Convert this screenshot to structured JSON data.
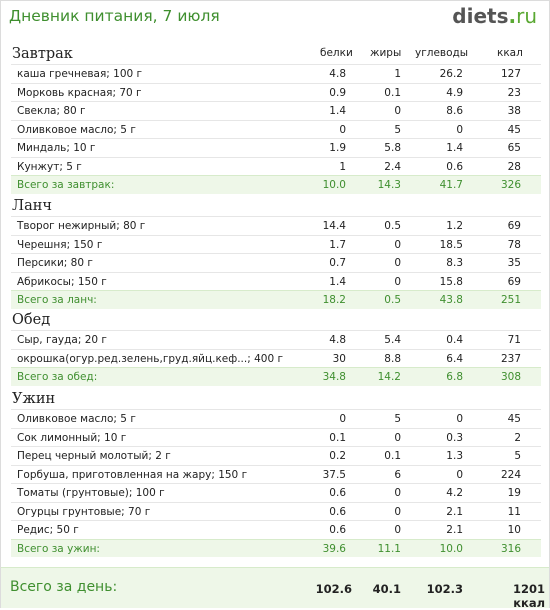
{
  "title": "Дневник питания, 7 июля",
  "logo": {
    "name": "diets",
    "dot": ".",
    "tld": "ru"
  },
  "columns": {
    "protein": "белки",
    "fat": "жиры",
    "carbs": "углеводы",
    "kcal": "ккал"
  },
  "meals": [
    {
      "name": "Завтрак",
      "items": [
        {
          "label": "каша гречневая; 100 г",
          "protein": "4.8",
          "fat": "1",
          "carbs": "26.2",
          "kcal": "127"
        },
        {
          "label": "Морковь красная; 70 г",
          "protein": "0.9",
          "fat": "0.1",
          "carbs": "4.9",
          "kcal": "23"
        },
        {
          "label": "Свекла; 80 г",
          "protein": "1.4",
          "fat": "0",
          "carbs": "8.6",
          "kcal": "38"
        },
        {
          "label": "Оливковое масло; 5 г",
          "protein": "0",
          "fat": "5",
          "carbs": "0",
          "kcal": "45"
        },
        {
          "label": "Миндаль; 10 г",
          "protein": "1.9",
          "fat": "5.8",
          "carbs": "1.4",
          "kcal": "65"
        },
        {
          "label": "Кунжут; 5 г",
          "protein": "1",
          "fat": "2.4",
          "carbs": "0.6",
          "kcal": "28"
        }
      ],
      "total": {
        "label": "Всего за завтрак:",
        "protein": "10.0",
        "fat": "14.3",
        "carbs": "41.7",
        "kcal": "326"
      }
    },
    {
      "name": "Ланч",
      "items": [
        {
          "label": "Творог нежирный; 80 г",
          "protein": "14.4",
          "fat": "0.5",
          "carbs": "1.2",
          "kcal": "69"
        },
        {
          "label": "Черешня; 150 г",
          "protein": "1.7",
          "fat": "0",
          "carbs": "18.5",
          "kcal": "78"
        },
        {
          "label": "Персики; 80 г",
          "protein": "0.7",
          "fat": "0",
          "carbs": "8.3",
          "kcal": "35"
        },
        {
          "label": "Абрикосы; 150 г",
          "protein": "1.4",
          "fat": "0",
          "carbs": "15.8",
          "kcal": "69"
        }
      ],
      "total": {
        "label": "Всего за ланч:",
        "protein": "18.2",
        "fat": "0.5",
        "carbs": "43.8",
        "kcal": "251"
      }
    },
    {
      "name": "Обед",
      "items": [
        {
          "label": "Сыр, гауда; 20 г",
          "protein": "4.8",
          "fat": "5.4",
          "carbs": "0.4",
          "kcal": "71"
        },
        {
          "label": "окрошка(огур.ред.зелень,груд.яйц.кеф...; 400 г",
          "protein": "30",
          "fat": "8.8",
          "carbs": "6.4",
          "kcal": "237"
        }
      ],
      "total": {
        "label": "Всего за обед:",
        "protein": "34.8",
        "fat": "14.2",
        "carbs": "6.8",
        "kcal": "308"
      }
    },
    {
      "name": "Ужин",
      "items": [
        {
          "label": "Оливковое масло; 5 г",
          "protein": "0",
          "fat": "5",
          "carbs": "0",
          "kcal": "45"
        },
        {
          "label": "Сок лимонный; 10 г",
          "protein": "0.1",
          "fat": "0",
          "carbs": "0.3",
          "kcal": "2"
        },
        {
          "label": "Перец черный молотый; 2 г",
          "protein": "0.2",
          "fat": "0.1",
          "carbs": "1.3",
          "kcal": "5"
        },
        {
          "label": "Горбуша, приготовленная на жару; 150 г",
          "protein": "37.5",
          "fat": "6",
          "carbs": "0",
          "kcal": "224"
        },
        {
          "label": "Томаты (грунтовые); 100 г",
          "protein": "0.6",
          "fat": "0",
          "carbs": "4.2",
          "kcal": "19"
        },
        {
          "label": "Огурцы грунтовые; 70 г",
          "protein": "0.6",
          "fat": "0",
          "carbs": "2.1",
          "kcal": "11"
        },
        {
          "label": "Редис; 50 г",
          "protein": "0.6",
          "fat": "0",
          "carbs": "2.1",
          "kcal": "10"
        }
      ],
      "total": {
        "label": "Всего за ужин:",
        "protein": "39.6",
        "fat": "11.1",
        "carbs": "10.0",
        "kcal": "316"
      }
    }
  ],
  "day_total": {
    "label": "Всего за день:",
    "protein": "102.6",
    "fat": "40.1",
    "carbs": "102.3",
    "kcal": "1201 ккал"
  }
}
